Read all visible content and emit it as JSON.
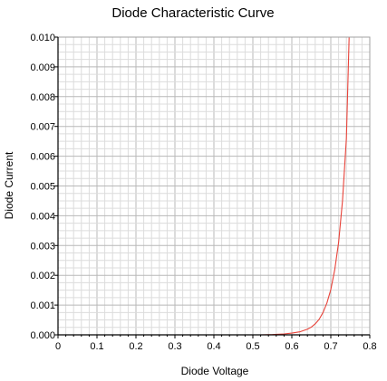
{
  "chart_data": {
    "type": "line",
    "title": "Diode Characteristic Curve",
    "xlabel": "Diode Voltage",
    "ylabel": "Diode Current",
    "xlim": [
      0,
      0.8
    ],
    "ylim": [
      0,
      0.01
    ],
    "x_ticks": [
      "0",
      "0.1",
      "0.2",
      "0.3",
      "0.4",
      "0.5",
      "0.6",
      "0.7",
      "0.8"
    ],
    "y_ticks": [
      "0.000",
      "0.001",
      "0.002",
      "0.003",
      "0.004",
      "0.005",
      "0.006",
      "0.007",
      "0.008",
      "0.009",
      "0.010"
    ],
    "grid": true,
    "legend": "none",
    "series": [
      {
        "color": "#e8433a",
        "x": [
          0.52,
          0.55,
          0.58,
          0.6,
          0.62,
          0.64,
          0.65,
          0.66,
          0.67,
          0.68,
          0.69,
          0.7,
          0.71,
          0.72,
          0.73,
          0.74,
          0.747
        ],
        "y": [
          0.0,
          1e-05,
          3e-05,
          6e-05,
          0.0001,
          0.00019,
          0.00026,
          0.00037,
          0.00052,
          0.00075,
          0.00107,
          0.00152,
          0.00218,
          0.0031,
          0.0045,
          0.0066,
          0.01
        ]
      }
    ]
  }
}
